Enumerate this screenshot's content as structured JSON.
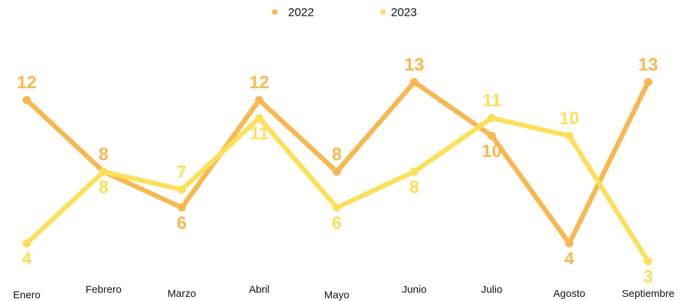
{
  "chart_data": {
    "type": "line",
    "categories": [
      "Enero",
      "Febrero",
      "Marzo",
      "Abril",
      "Mayo",
      "Junio",
      "Julio",
      "Agosto",
      "Septiembre"
    ],
    "series": [
      {
        "name": "2022",
        "color": "#f8b851",
        "values": [
          12,
          8,
          6,
          12,
          8,
          13,
          10,
          4,
          13
        ]
      },
      {
        "name": "2023",
        "color": "#fde05a",
        "values": [
          4,
          8,
          7,
          11,
          6,
          8,
          11,
          10,
          3
        ]
      }
    ],
    "legend": "top"
  }
}
